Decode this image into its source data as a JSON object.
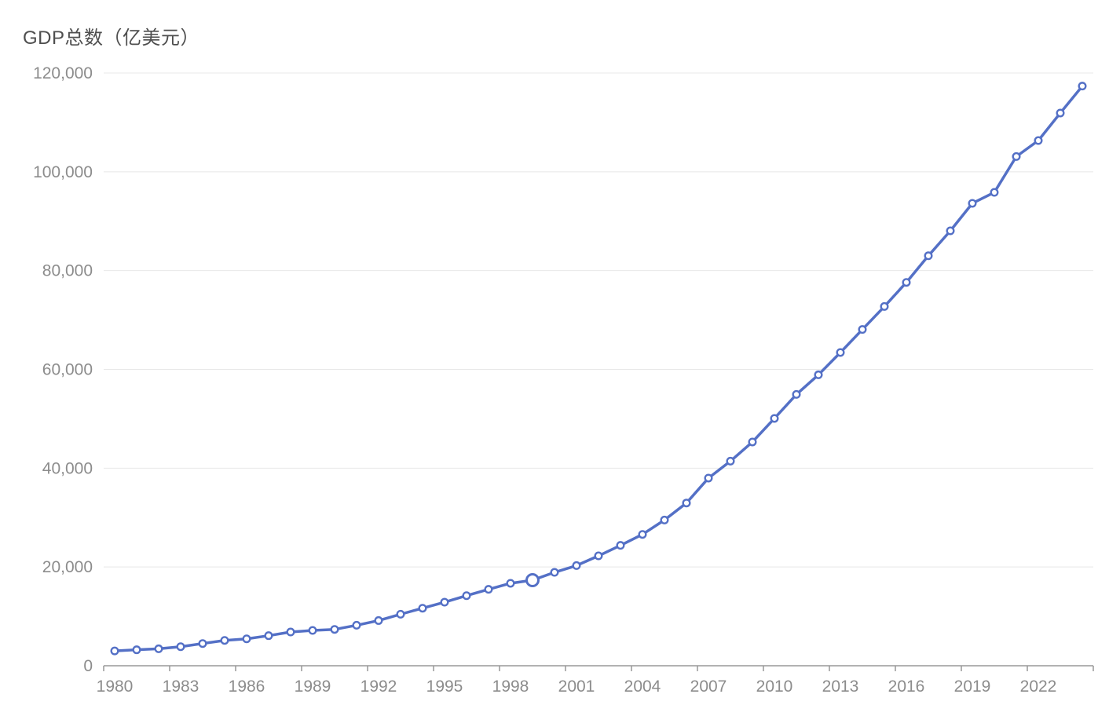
{
  "colors": {
    "line": "#5470C6",
    "marker_fill": "#ffffff",
    "grid": "#e8e8e8",
    "axis": "#999999",
    "tick_label": "#8c8c8c",
    "title_text": "#4e4e4e",
    "background": "#ffffff"
  },
  "chart_data": {
    "type": "line",
    "title": "GDP总数（亿美元）",
    "xlabel": "",
    "ylabel": "GDP总数（亿美元）",
    "legend": "none",
    "grid": "horizontal-only",
    "marker": "empty-circle",
    "emphasized_year": 1999,
    "ylim": [
      0,
      120000
    ],
    "y_ticks": [
      0,
      20000,
      40000,
      60000,
      80000,
      100000,
      120000
    ],
    "y_tick_labels": [
      "0",
      "20,000",
      "40,000",
      "60,000",
      "80,000",
      "100,000",
      "120,000"
    ],
    "x_tick_interval": 3,
    "x_tick_labels": [
      "1980",
      "1983",
      "1986",
      "1989",
      "1992",
      "1995",
      "1998",
      "2001",
      "2004",
      "2007",
      "2010",
      "2013",
      "2016",
      "2019",
      "2022"
    ],
    "x": [
      1980,
      1981,
      1982,
      1983,
      1984,
      1985,
      1986,
      1987,
      1988,
      1989,
      1990,
      1991,
      1992,
      1993,
      1994,
      1995,
      1996,
      1997,
      1998,
      1999,
      2000,
      2001,
      2002,
      2003,
      2004,
      2005,
      2006,
      2007,
      2008,
      2009,
      2010,
      2011,
      2012,
      2013,
      2014,
      2015,
      2016,
      2017,
      2018,
      2019,
      2020,
      2021,
      2022,
      2023,
      2024
    ],
    "values": [
      3000,
      3230,
      3430,
      3860,
      4500,
      5130,
      5450,
      6090,
      6830,
      7150,
      7360,
      8200,
      9150,
      10430,
      11650,
      12870,
      14190,
      15470,
      16690,
      17330,
      18910,
      20280,
      22250,
      24370,
      26590,
      29500,
      32950,
      37990,
      41420,
      45300,
      50070,
      54930,
      58900,
      63420,
      68080,
      72730,
      77610,
      83000,
      88050,
      93620,
      95840,
      103090,
      106330,
      111900,
      117350
    ]
  }
}
